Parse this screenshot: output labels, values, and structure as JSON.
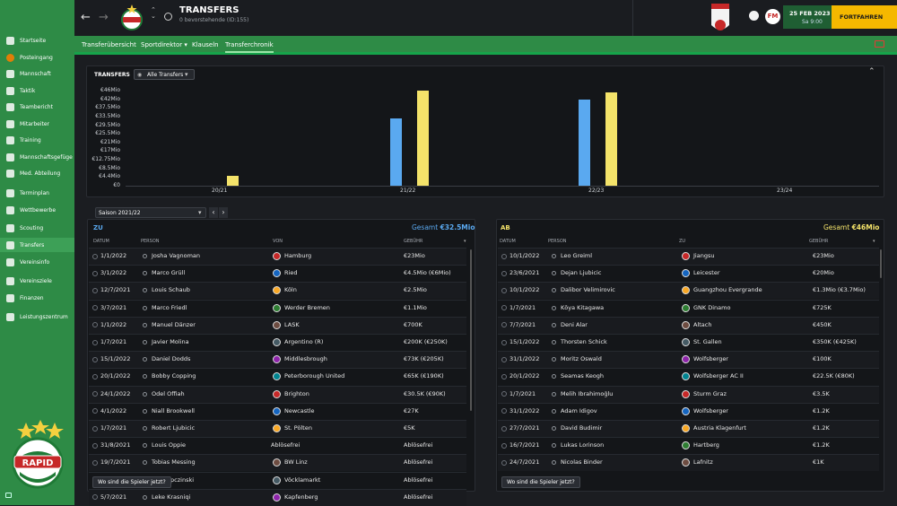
{
  "header": {
    "title": "TRANSFERS",
    "subtitle": "0 bevorstehende (ID:155)",
    "date": "25 FEB 2023",
    "day_time": "Sa 9:00",
    "continue": "FORTFAHREN"
  },
  "tabs": [
    "Transferübersicht",
    "Sportdirektor",
    "Klauseln",
    "Transferchronik"
  ],
  "sidebar": [
    "Startseite",
    "Posteingang",
    "Mannschaft",
    "Taktik",
    "Teambericht",
    "Mitarbeiter",
    "Training",
    "Mannschaftsgefüge",
    "Med. Abteilung",
    "Terminplan",
    "Wettbewerbe",
    "Scouting",
    "Transfers",
    "Vereinsinfo",
    "Vereinsziele",
    "Finanzen",
    "Leistungszentrum"
  ],
  "chart_title": "TRANSFERS",
  "chart_filter": "Alle Transfers",
  "chart_data": {
    "type": "bar",
    "categories": [
      "20/21",
      "21/22",
      "22/23",
      "23/24"
    ],
    "yticks": [
      "€46Mio",
      "€42Mio",
      "€37.5Mio",
      "€33.5Mio",
      "€29.5Mio",
      "€25.5Mio",
      "€21Mio",
      "€17Mio",
      "€12.75Mio",
      "€8.5Mio",
      "€4.4Mio",
      "€0"
    ],
    "ylim": [
      0,
      46
    ],
    "series": [
      {
        "name": "ZU",
        "color": "#5aa9f0",
        "values": [
          0,
          32.5,
          41.5,
          0
        ]
      },
      {
        "name": "AB",
        "color": "#f4e36a",
        "values": [
          4.8,
          46,
          45,
          0
        ]
      }
    ]
  },
  "season": "Saison 2021/22",
  "zu": {
    "label": "ZU",
    "total_label": "Gesamt",
    "total": "€32.5Mio",
    "cols": [
      "DATUM",
      "PERSON",
      "VON",
      "GEBÜHR"
    ],
    "rows": [
      [
        "1/1/2022",
        "Josha Vagnoman",
        "Hamburg",
        "€23Mio"
      ],
      [
        "3/1/2022",
        "Marco Grüll",
        "Ried",
        "€4.5Mio (€6Mio)"
      ],
      [
        "12/7/2021",
        "Louis Schaub",
        "Köln",
        "€2.5Mio"
      ],
      [
        "3/7/2021",
        "Marco Friedl",
        "Werder Bremen",
        "€1.1Mio"
      ],
      [
        "1/1/2022",
        "Manuel Dänzer",
        "LASK",
        "€700K"
      ],
      [
        "1/7/2021",
        "Javier Molina",
        "Argentino (R)",
        "€200K (€250K)"
      ],
      [
        "15/1/2022",
        "Daniel Dodds",
        "Middlesbrough",
        "€73K (€205K)"
      ],
      [
        "20/1/2022",
        "Bobby Copping",
        "Peterborough United",
        "€65K (€190K)"
      ],
      [
        "24/1/2022",
        "Odel Offiah",
        "Brighton",
        "€30.5K (€90K)"
      ],
      [
        "4/1/2022",
        "Niall Brookwell",
        "Newcastle",
        "€27K"
      ],
      [
        "1/7/2021",
        "Robert Ljubicic",
        "St. Pölten",
        "€5K"
      ],
      [
        "31/8/2021",
        "Louis Oppie",
        "Ablösefrei",
        "Ablösefrei"
      ],
      [
        "19/7/2021",
        "Tobias Messing",
        "BW Linz",
        "Ablösefrei"
      ],
      [
        "9/7/2021",
        "Paul Lipczinski",
        "Vöcklamarkt",
        "Ablösefrei"
      ],
      [
        "5/7/2021",
        "Leke Krasniqi",
        "Kapfenberg",
        "Ablösefrei"
      ]
    ]
  },
  "ab": {
    "label": "AB",
    "total_label": "Gesamt",
    "total": "€46Mio",
    "cols": [
      "DATUM",
      "PERSON",
      "ZU",
      "GEBÜHR"
    ],
    "rows": [
      [
        "10/1/2022",
        "Leo Greiml",
        "Jiangsu",
        "€23Mio"
      ],
      [
        "23/6/2021",
        "Dejan Ljubicic",
        "Leicester",
        "€20Mio"
      ],
      [
        "10/1/2022",
        "Dalibor Velimirovic",
        "Guangzhou Evergrande",
        "€1.3Mio (€3.7Mio)"
      ],
      [
        "1/7/2021",
        "Kōya Kitagawa",
        "GNK Dinamo",
        "€725K"
      ],
      [
        "7/7/2021",
        "Deni Alar",
        "Altach",
        "€450K"
      ],
      [
        "15/1/2022",
        "Thorsten Schick",
        "St. Gallen",
        "€350K (€425K)"
      ],
      [
        "31/1/2022",
        "Moritz Oswald",
        "Wolfsberger",
        "€100K"
      ],
      [
        "20/1/2022",
        "Seamas Keogh",
        "Wolfsberger AC II",
        "€22.5K (€80K)"
      ],
      [
        "1/7/2021",
        "Melih Ibrahimoğlu",
        "Sturm Graz",
        "€3.5K"
      ],
      [
        "31/1/2022",
        "Adam Idigov",
        "Wolfsberger",
        "€1.2K"
      ],
      [
        "27/7/2021",
        "David Budimir",
        "Austria Klagenfurt",
        "€1.2K"
      ],
      [
        "16/7/2021",
        "Lukas Lorinson",
        "Hartberg",
        "€1.2K"
      ],
      [
        "24/7/2021",
        "Nicolas Binder",
        "Lafnitz",
        "€1K"
      ]
    ]
  },
  "where_button": "Wo sind die Spieler jetzt?",
  "badge_colors": [
    "#c62828",
    "#1565c0",
    "#f9a825",
    "#2e7d32",
    "#6d4c41",
    "#455a64",
    "#8e24aa",
    "#00838f"
  ]
}
